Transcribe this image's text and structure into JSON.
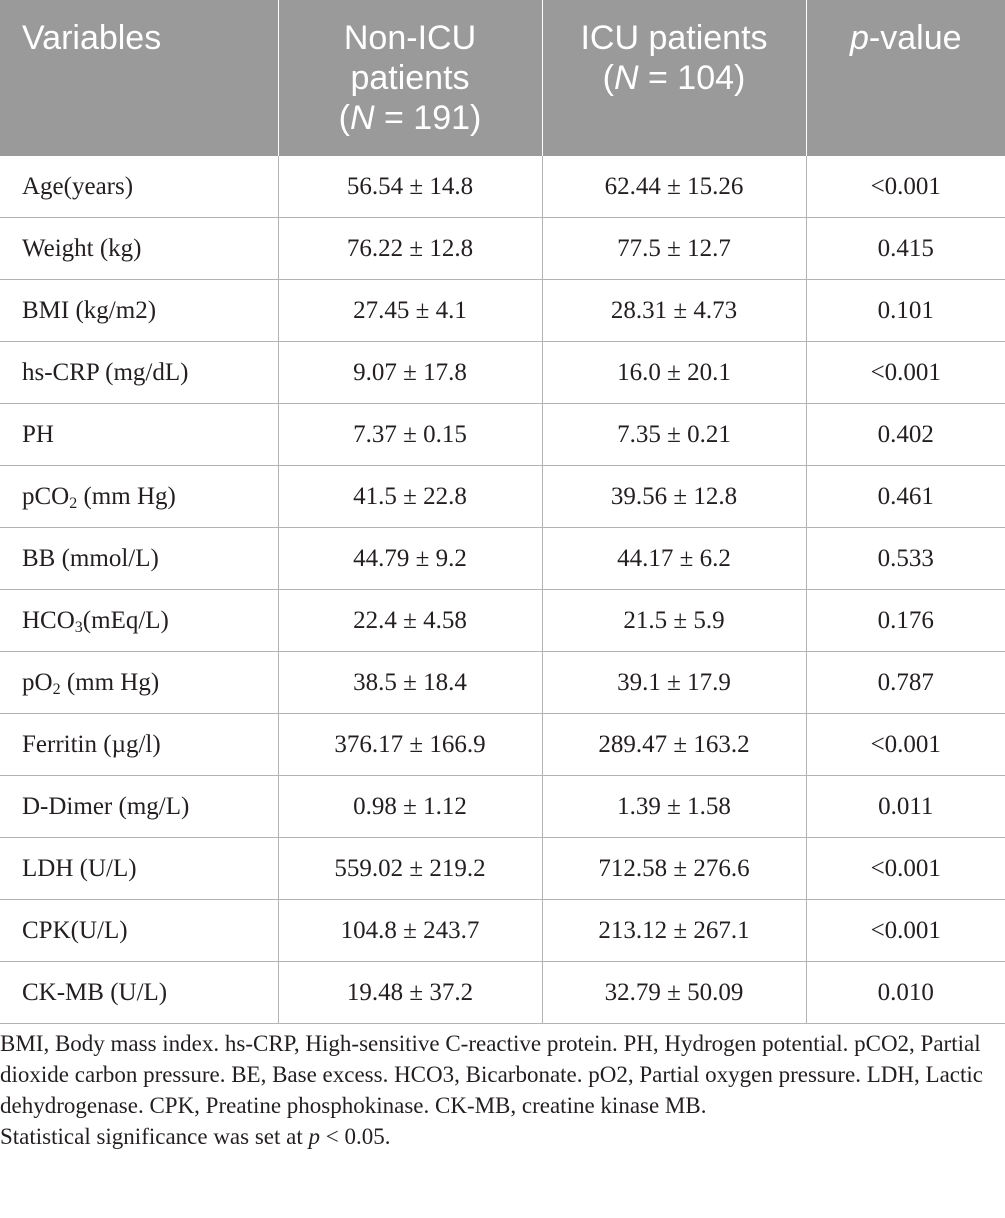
{
  "table": {
    "headers": {
      "variables": "Variables",
      "non_icu": {
        "line1": "Non-ICU",
        "line2": "patients",
        "n_symbol": "N",
        "n_value": " = 191"
      },
      "icu": {
        "line1": "ICU patients",
        "n_symbol": "N",
        "n_value": " = 104"
      },
      "p_value": {
        "p": "p",
        "rest": "-value"
      }
    },
    "rows": [
      {
        "variable": "Age(years)",
        "non_icu": "56.54 ± 14.8",
        "icu": "62.44 ± 15.26",
        "p_value": "<0.001"
      },
      {
        "variable": "Weight (kg)",
        "non_icu": "76.22 ± 12.8",
        "icu": "77.5 ± 12.7",
        "p_value": "0.415"
      },
      {
        "variable": "BMI (kg/m2)",
        "non_icu": "27.45 ± 4.1",
        "icu": "28.31 ± 4.73",
        "p_value": "0.101"
      },
      {
        "variable": "hs-CRP (mg/dL)",
        "non_icu": "9.07 ± 17.8",
        "icu": "16.0 ± 20.1",
        "p_value": "<0.001"
      },
      {
        "variable": "PH",
        "non_icu": "7.37 ± 0.15",
        "icu": "7.35 ± 0.21",
        "p_value": "0.402"
      },
      {
        "variable_pre": "pCO",
        "variable_sub": "2",
        "variable_post": " (mm Hg)",
        "non_icu": "41.5 ± 22.8",
        "icu": "39.56 ± 12.8",
        "p_value": "0.461"
      },
      {
        "variable": "BB (mmol/L)",
        "non_icu": "44.79 ± 9.2",
        "icu": "44.17 ± 6.2",
        "p_value": "0.533"
      },
      {
        "variable_pre": "HCO",
        "variable_sub": "3",
        "variable_post": "(mEq/L)",
        "non_icu": "22.4 ± 4.58",
        "icu": "21.5 ± 5.9",
        "p_value": "0.176"
      },
      {
        "variable_pre": "pO",
        "variable_sub": "2",
        "variable_post": " (mm Hg)",
        "non_icu": "38.5 ± 18.4",
        "icu": "39.1 ± 17.9",
        "p_value": "0.787"
      },
      {
        "variable": "Ferritin (µg/l)",
        "non_icu": "376.17 ± 166.9",
        "icu": "289.47 ± 163.2",
        "p_value": "<0.001"
      },
      {
        "variable": "D-Dimer (mg/L)",
        "non_icu": "0.98 ± 1.12",
        "icu": "1.39 ± 1.58",
        "p_value": "0.011"
      },
      {
        "variable": "LDH (U/L)",
        "non_icu": "559.02 ± 219.2",
        "icu": "712.58 ± 276.6",
        "p_value": "<0.001"
      },
      {
        "variable": "CPK(U/L)",
        "non_icu": "104.8 ± 243.7",
        "icu": "213.12 ± 267.1",
        "p_value": "<0.001"
      },
      {
        "variable": "CK-MB (U/L)",
        "non_icu": "19.48 ± 37.2",
        "icu": "32.79 ± 50.09",
        "p_value": "0.010"
      }
    ]
  },
  "footnote": {
    "abbreviations": "BMI, Body mass index. hs-CRP, High-sensitive C-reactive protein. PH, Hydrogen potential. pCO2, Partial dioxide carbon pressure. BE, Base excess. HCO3, Bicarbonate. pO2, Partial oxygen pressure. LDH, Lactic dehydrogenase. CPK, Preatine phosphokinase. CK-MB, creatine kinase MB.",
    "significance_pre": "Statistical significance was set at ",
    "significance_p": "p",
    "significance_post": " < 0.05."
  }
}
